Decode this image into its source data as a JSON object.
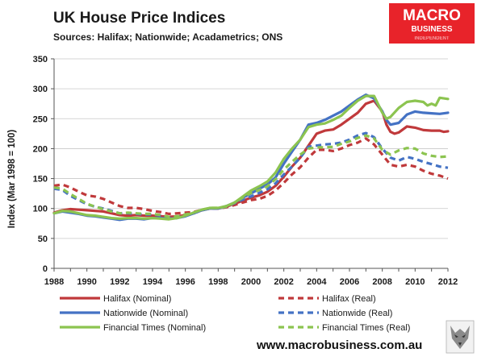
{
  "header": {
    "title": "UK House Price Indices",
    "sources": "Sources: Halifax; Nationwide; Acadametrics; ONS"
  },
  "logo": {
    "line1": "MACRO",
    "line2": "BUSINESS",
    "line3": "INDEPENDENT",
    "background_color": "#e8232a"
  },
  "footer": {
    "url": "www.macrobusiness.com.au",
    "mascot_icon": "wolf-icon"
  },
  "chart_data": {
    "type": "line",
    "title": "UK House Price Indices",
    "subtitle": "Sources: Halifax; Nationwide; Acadametrics; ONS",
    "xlabel": "",
    "ylabel": "Index (Mar 1998 = 100)",
    "xlim": [
      1988,
      2012
    ],
    "ylim": [
      0,
      350
    ],
    "x_ticks": [
      "1988",
      "1990",
      "1992",
      "1994",
      "1996",
      "1998",
      "2000",
      "2002",
      "2004",
      "2006",
      "2008",
      "2010",
      "2012"
    ],
    "y_ticks": [
      "0",
      "50",
      "100",
      "150",
      "200",
      "250",
      "300",
      "350"
    ],
    "grid": true,
    "legend_position": "bottom",
    "series": [
      {
        "name": "Halifax (Nominal)",
        "color": "#c0393b",
        "style": "solid",
        "x": [
          1988.0,
          1988.5,
          1989.0,
          1989.5,
          1990.0,
          1990.5,
          1991.0,
          1991.5,
          1992.0,
          1992.5,
          1993.0,
          1993.5,
          1994.0,
          1994.5,
          1995.0,
          1995.5,
          1996.0,
          1996.5,
          1997.0,
          1997.5,
          1998.0,
          1998.5,
          1999.0,
          1999.5,
          2000.0,
          2000.5,
          2001.0,
          2001.5,
          2002.0,
          2002.5,
          2003.0,
          2003.5,
          2004.0,
          2004.5,
          2005.0,
          2005.5,
          2006.0,
          2006.5,
          2007.0,
          2007.5,
          2008.0,
          2008.25,
          2008.5,
          2008.75,
          2009.0,
          2009.5,
          2010.0,
          2010.5,
          2011.0,
          2011.5,
          2011.75,
          2012.0
        ],
        "values": [
          93,
          97,
          99,
          98,
          97,
          96,
          95,
          92,
          89,
          88,
          89,
          88,
          88,
          87,
          86,
          87,
          89,
          92,
          97,
          100,
          100,
          103,
          108,
          113,
          118,
          122,
          128,
          138,
          153,
          170,
          185,
          205,
          225,
          230,
          232,
          240,
          250,
          260,
          275,
          280,
          262,
          240,
          228,
          225,
          227,
          237,
          235,
          231,
          230,
          230,
          228,
          229
        ]
      },
      {
        "name": "Halifax (Real)",
        "color": "#c0393b",
        "style": "dashed",
        "x": [
          1988.0,
          1988.5,
          1989.0,
          1989.5,
          1990.0,
          1990.5,
          1991.0,
          1991.5,
          1992.0,
          1992.5,
          1993.0,
          1993.5,
          1994.0,
          1994.5,
          1995.0,
          1995.5,
          1996.0,
          1996.5,
          1997.0,
          1997.5,
          1998.0,
          1998.5,
          1999.0,
          1999.5,
          2000.0,
          2000.5,
          2001.0,
          2001.5,
          2002.0,
          2002.5,
          2003.0,
          2003.5,
          2004.0,
          2004.5,
          2005.0,
          2005.5,
          2006.0,
          2006.5,
          2007.0,
          2007.5,
          2008.0,
          2008.5,
          2009.0,
          2009.5,
          2010.0,
          2010.5,
          2011.0,
          2011.5,
          2012.0
        ],
        "values": [
          138,
          140,
          135,
          128,
          122,
          120,
          116,
          110,
          104,
          101,
          101,
          99,
          96,
          94,
          91,
          92,
          93,
          94,
          98,
          100,
          100,
          102,
          106,
          110,
          114,
          116,
          121,
          130,
          143,
          157,
          169,
          185,
          198,
          198,
          196,
          200,
          206,
          210,
          217,
          207,
          190,
          173,
          170,
          173,
          170,
          163,
          158,
          155,
          150
        ]
      },
      {
        "name": "Nationwide (Nominal)",
        "color": "#4472c4",
        "style": "solid",
        "x": [
          1988.0,
          1988.5,
          1989.0,
          1989.5,
          1990.0,
          1990.5,
          1991.0,
          1991.5,
          1992.0,
          1992.5,
          1993.0,
          1993.5,
          1994.0,
          1994.5,
          1995.0,
          1995.5,
          1996.0,
          1996.5,
          1997.0,
          1997.5,
          1998.0,
          1998.5,
          1999.0,
          1999.5,
          2000.0,
          2000.5,
          2001.0,
          2001.5,
          2002.0,
          2002.5,
          2003.0,
          2003.5,
          2004.0,
          2004.5,
          2005.0,
          2005.5,
          2006.0,
          2006.5,
          2007.0,
          2007.5,
          2008.0,
          2008.25,
          2008.5,
          2009.0,
          2009.5,
          2010.0,
          2010.5,
          2011.0,
          2011.5,
          2012.0
        ],
        "values": [
          92,
          95,
          93,
          91,
          88,
          87,
          85,
          83,
          81,
          83,
          83,
          82,
          84,
          84,
          83,
          84,
          87,
          92,
          97,
          100,
          100,
          104,
          110,
          118,
          125,
          133,
          140,
          152,
          175,
          195,
          215,
          240,
          243,
          248,
          255,
          262,
          272,
          282,
          290,
          284,
          262,
          248,
          240,
          243,
          257,
          262,
          260,
          259,
          258,
          260
        ]
      },
      {
        "name": "Nationwide (Real)",
        "color": "#4472c4",
        "style": "dashed",
        "x": [
          1988.0,
          1988.5,
          1989.0,
          1989.5,
          1990.0,
          1990.5,
          1991.0,
          1991.5,
          1992.0,
          1992.5,
          1993.0,
          1993.5,
          1994.0,
          1994.5,
          1995.0,
          1995.5,
          1996.0,
          1996.5,
          1997.0,
          1997.5,
          1998.0,
          1998.5,
          1999.0,
          1999.5,
          2000.0,
          2000.5,
          2001.0,
          2001.5,
          2002.0,
          2002.5,
          2003.0,
          2003.5,
          2004.0,
          2004.5,
          2005.0,
          2005.5,
          2006.0,
          2006.5,
          2007.0,
          2007.5,
          2008.0,
          2008.5,
          2009.0,
          2009.5,
          2010.0,
          2010.5,
          2011.0,
          2011.5,
          2012.0
        ],
        "values": [
          133,
          131,
          121,
          114,
          107,
          103,
          100,
          96,
          92,
          92,
          91,
          90,
          90,
          88,
          85,
          86,
          89,
          92,
          97,
          100,
          100,
          103,
          109,
          115,
          120,
          126,
          132,
          142,
          157,
          170,
          185,
          203,
          205,
          207,
          208,
          210,
          215,
          222,
          226,
          219,
          200,
          185,
          180,
          186,
          183,
          178,
          174,
          170,
          168
        ]
      },
      {
        "name": "Financial Times (Nominal)",
        "color": "#8cc450",
        "style": "solid",
        "x": [
          1988.0,
          1988.5,
          1989.0,
          1989.5,
          1990.0,
          1990.5,
          1991.0,
          1991.5,
          1992.0,
          1992.5,
          1993.0,
          1993.5,
          1994.0,
          1994.5,
          1995.0,
          1995.5,
          1996.0,
          1996.5,
          1997.0,
          1997.5,
          1998.0,
          1998.5,
          1999.0,
          1999.5,
          2000.0,
          2000.5,
          2001.0,
          2001.5,
          2002.0,
          2002.5,
          2003.0,
          2003.5,
          2004.0,
          2004.5,
          2005.0,
          2005.5,
          2006.0,
          2006.5,
          2007.0,
          2007.5,
          2008.0,
          2008.25,
          2008.5,
          2009.0,
          2009.5,
          2010.0,
          2010.5,
          2010.75,
          2011.0,
          2011.25,
          2011.5,
          2012.0
        ],
        "values": [
          92,
          96,
          95,
          92,
          89,
          88,
          86,
          84,
          83,
          84,
          84,
          83,
          84,
          83,
          82,
          84,
          88,
          93,
          98,
          101,
          101,
          104,
          110,
          120,
          130,
          137,
          145,
          160,
          183,
          200,
          215,
          236,
          240,
          242,
          248,
          255,
          268,
          280,
          288,
          288,
          260,
          250,
          253,
          268,
          278,
          280,
          278,
          272,
          275,
          272,
          285,
          283
        ]
      },
      {
        "name": "Financial Times (Real)",
        "color": "#8cc450",
        "style": "dashed",
        "x": [
          1988.0,
          1988.5,
          1989.0,
          1989.5,
          1990.0,
          1990.5,
          1991.0,
          1991.5,
          1992.0,
          1992.5,
          1993.0,
          1993.5,
          1994.0,
          1994.5,
          1995.0,
          1995.5,
          1996.0,
          1996.5,
          1997.0,
          1997.5,
          1998.0,
          1998.5,
          1999.0,
          1999.5,
          2000.0,
          2000.5,
          2001.0,
          2001.5,
          2002.0,
          2002.5,
          2003.0,
          2003.5,
          2004.0,
          2004.5,
          2005.0,
          2005.5,
          2006.0,
          2006.5,
          2007.0,
          2007.5,
          2008.0,
          2008.5,
          2009.0,
          2009.5,
          2010.0,
          2010.5,
          2011.0,
          2011.5,
          2012.0
        ],
        "values": [
          135,
          133,
          124,
          116,
          108,
          103,
          99,
          95,
          92,
          93,
          92,
          91,
          91,
          89,
          86,
          87,
          90,
          93,
          98,
          101,
          101,
          103,
          110,
          118,
          126,
          131,
          137,
          149,
          165,
          178,
          190,
          200,
          202,
          202,
          203,
          208,
          212,
          218,
          222,
          217,
          198,
          190,
          197,
          201,
          200,
          192,
          188,
          186,
          187
        ]
      }
    ]
  }
}
